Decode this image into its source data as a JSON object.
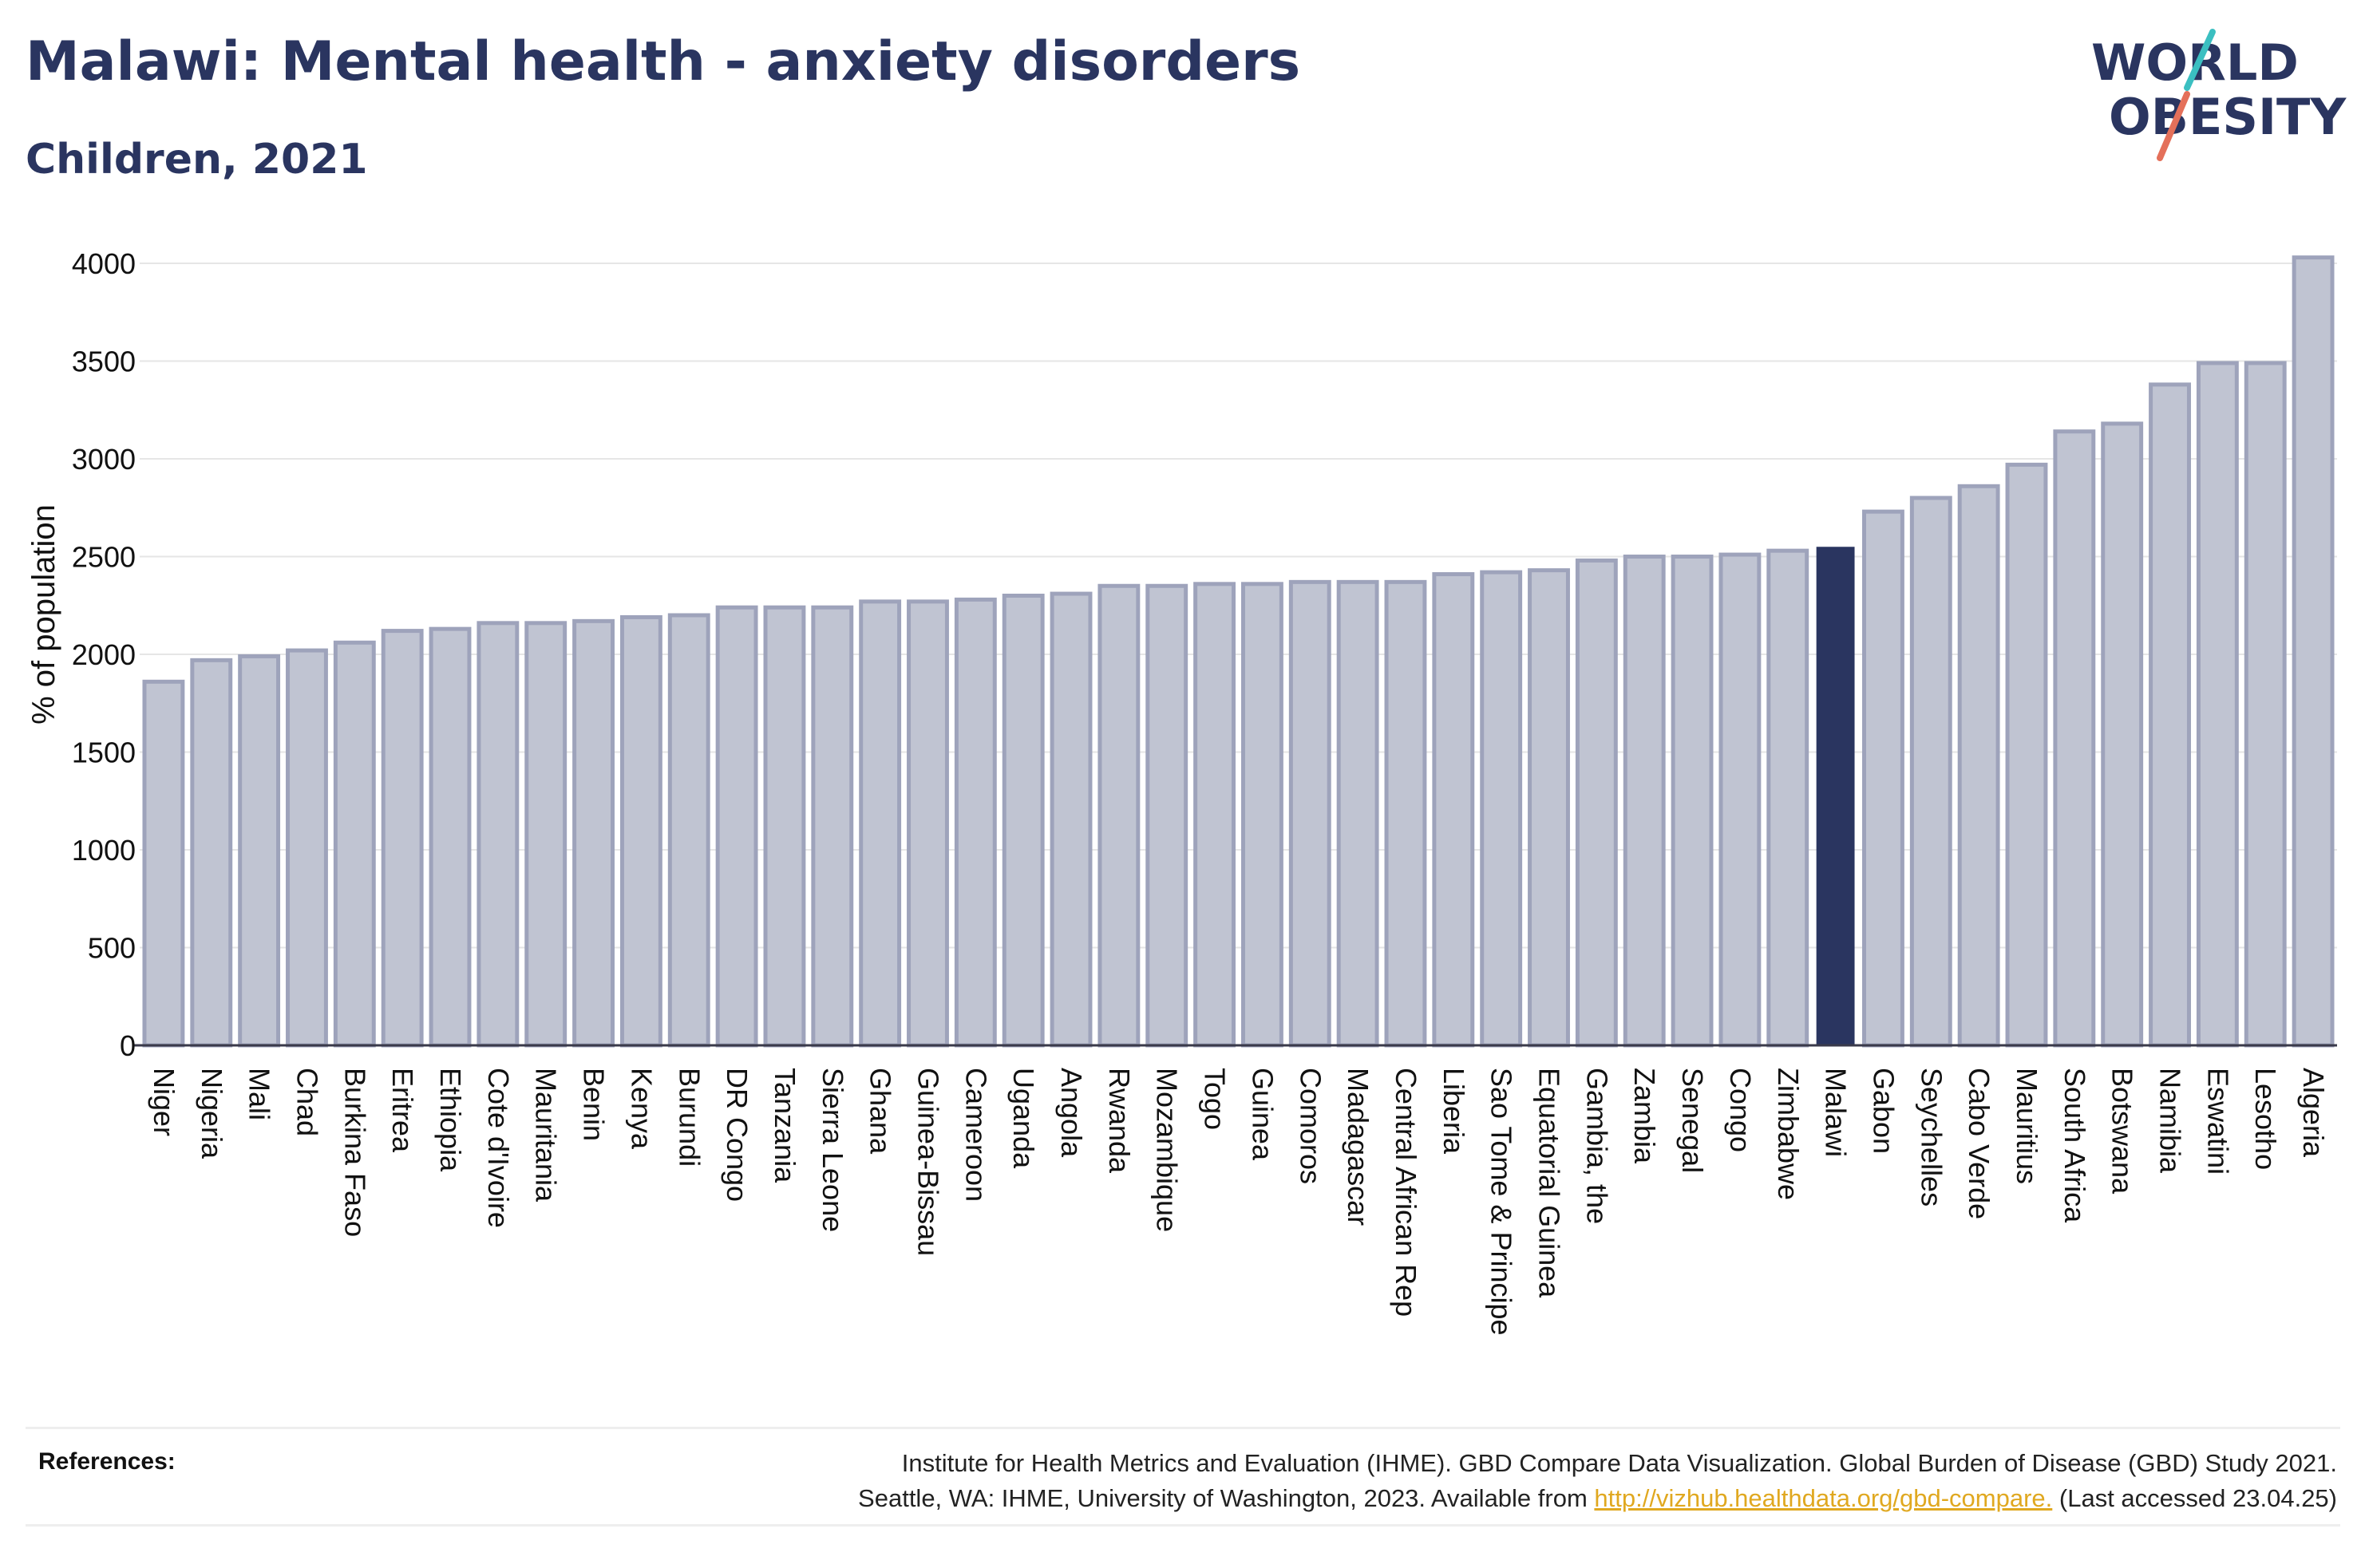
{
  "header": {
    "title": "Malawi: Mental health - anxiety disorders",
    "subtitle": "Children, 2021"
  },
  "logo": {
    "line1": "WORLD",
    "line2": "OBESITY",
    "accent_colors": [
      "#3bbfc1",
      "#e4705a"
    ]
  },
  "references": {
    "label": "References:",
    "line1": "Institute for Health Metrics and Evaluation (IHME). GBD Compare Data Visualization. Global Burden of Disease (GBD) Study 2021.",
    "line2_prefix": "Seattle, WA: IHME, University of Washington, 2023. Available from ",
    "link": "http://vizhub.healthdata.org/gbd-compare.",
    "line2_suffix": " (Last accessed 23.04.25)"
  },
  "colors": {
    "bar_fill": "#c0c4d2",
    "bar_stroke": "#9ea3bb",
    "highlight": "#2a3560",
    "grid": "#e6e6e6",
    "axis": "#3a3a4a"
  },
  "chart_data": {
    "type": "bar",
    "ylabel": "% of population",
    "ylim": [
      0,
      4000
    ],
    "yticks": [
      0,
      500,
      1000,
      1500,
      2000,
      2500,
      3000,
      3500,
      4000
    ],
    "grid": true,
    "highlight": "Malawi",
    "categories": [
      "Niger",
      "Nigeria",
      "Mali",
      "Chad",
      "Burkina Faso",
      "Eritrea",
      "Ethiopia",
      "Cote d'Ivoire",
      "Mauritania",
      "Benin",
      "Kenya",
      "Burundi",
      "DR Congo",
      "Tanzania",
      "Sierra Leone",
      "Ghana",
      "Guinea-Bissau",
      "Cameroon",
      "Uganda",
      "Angola",
      "Rwanda",
      "Mozambique",
      "Togo",
      "Guinea",
      "Comoros",
      "Madagascar",
      "Central African Rep",
      "Liberia",
      "Sao Tome & Principe",
      "Equatorial Guinea",
      "Gambia, the",
      "Zambia",
      "Senegal",
      "Congo",
      "Zimbabwe",
      "Malawi",
      "Gabon",
      "Seychelles",
      "Cabo Verde",
      "Mauritius",
      "South Africa",
      "Botswana",
      "Namibia",
      "Eswatini",
      "Lesotho",
      "Algeria"
    ],
    "values": [
      1860,
      1970,
      1990,
      2020,
      2060,
      2120,
      2130,
      2160,
      2160,
      2170,
      2190,
      2200,
      2240,
      2240,
      2240,
      2270,
      2270,
      2280,
      2300,
      2310,
      2350,
      2350,
      2360,
      2360,
      2370,
      2370,
      2370,
      2410,
      2420,
      2430,
      2480,
      2500,
      2500,
      2510,
      2530,
      2550,
      2730,
      2800,
      2860,
      2970,
      3140,
      3180,
      3380,
      3490,
      3490,
      4030
    ]
  }
}
